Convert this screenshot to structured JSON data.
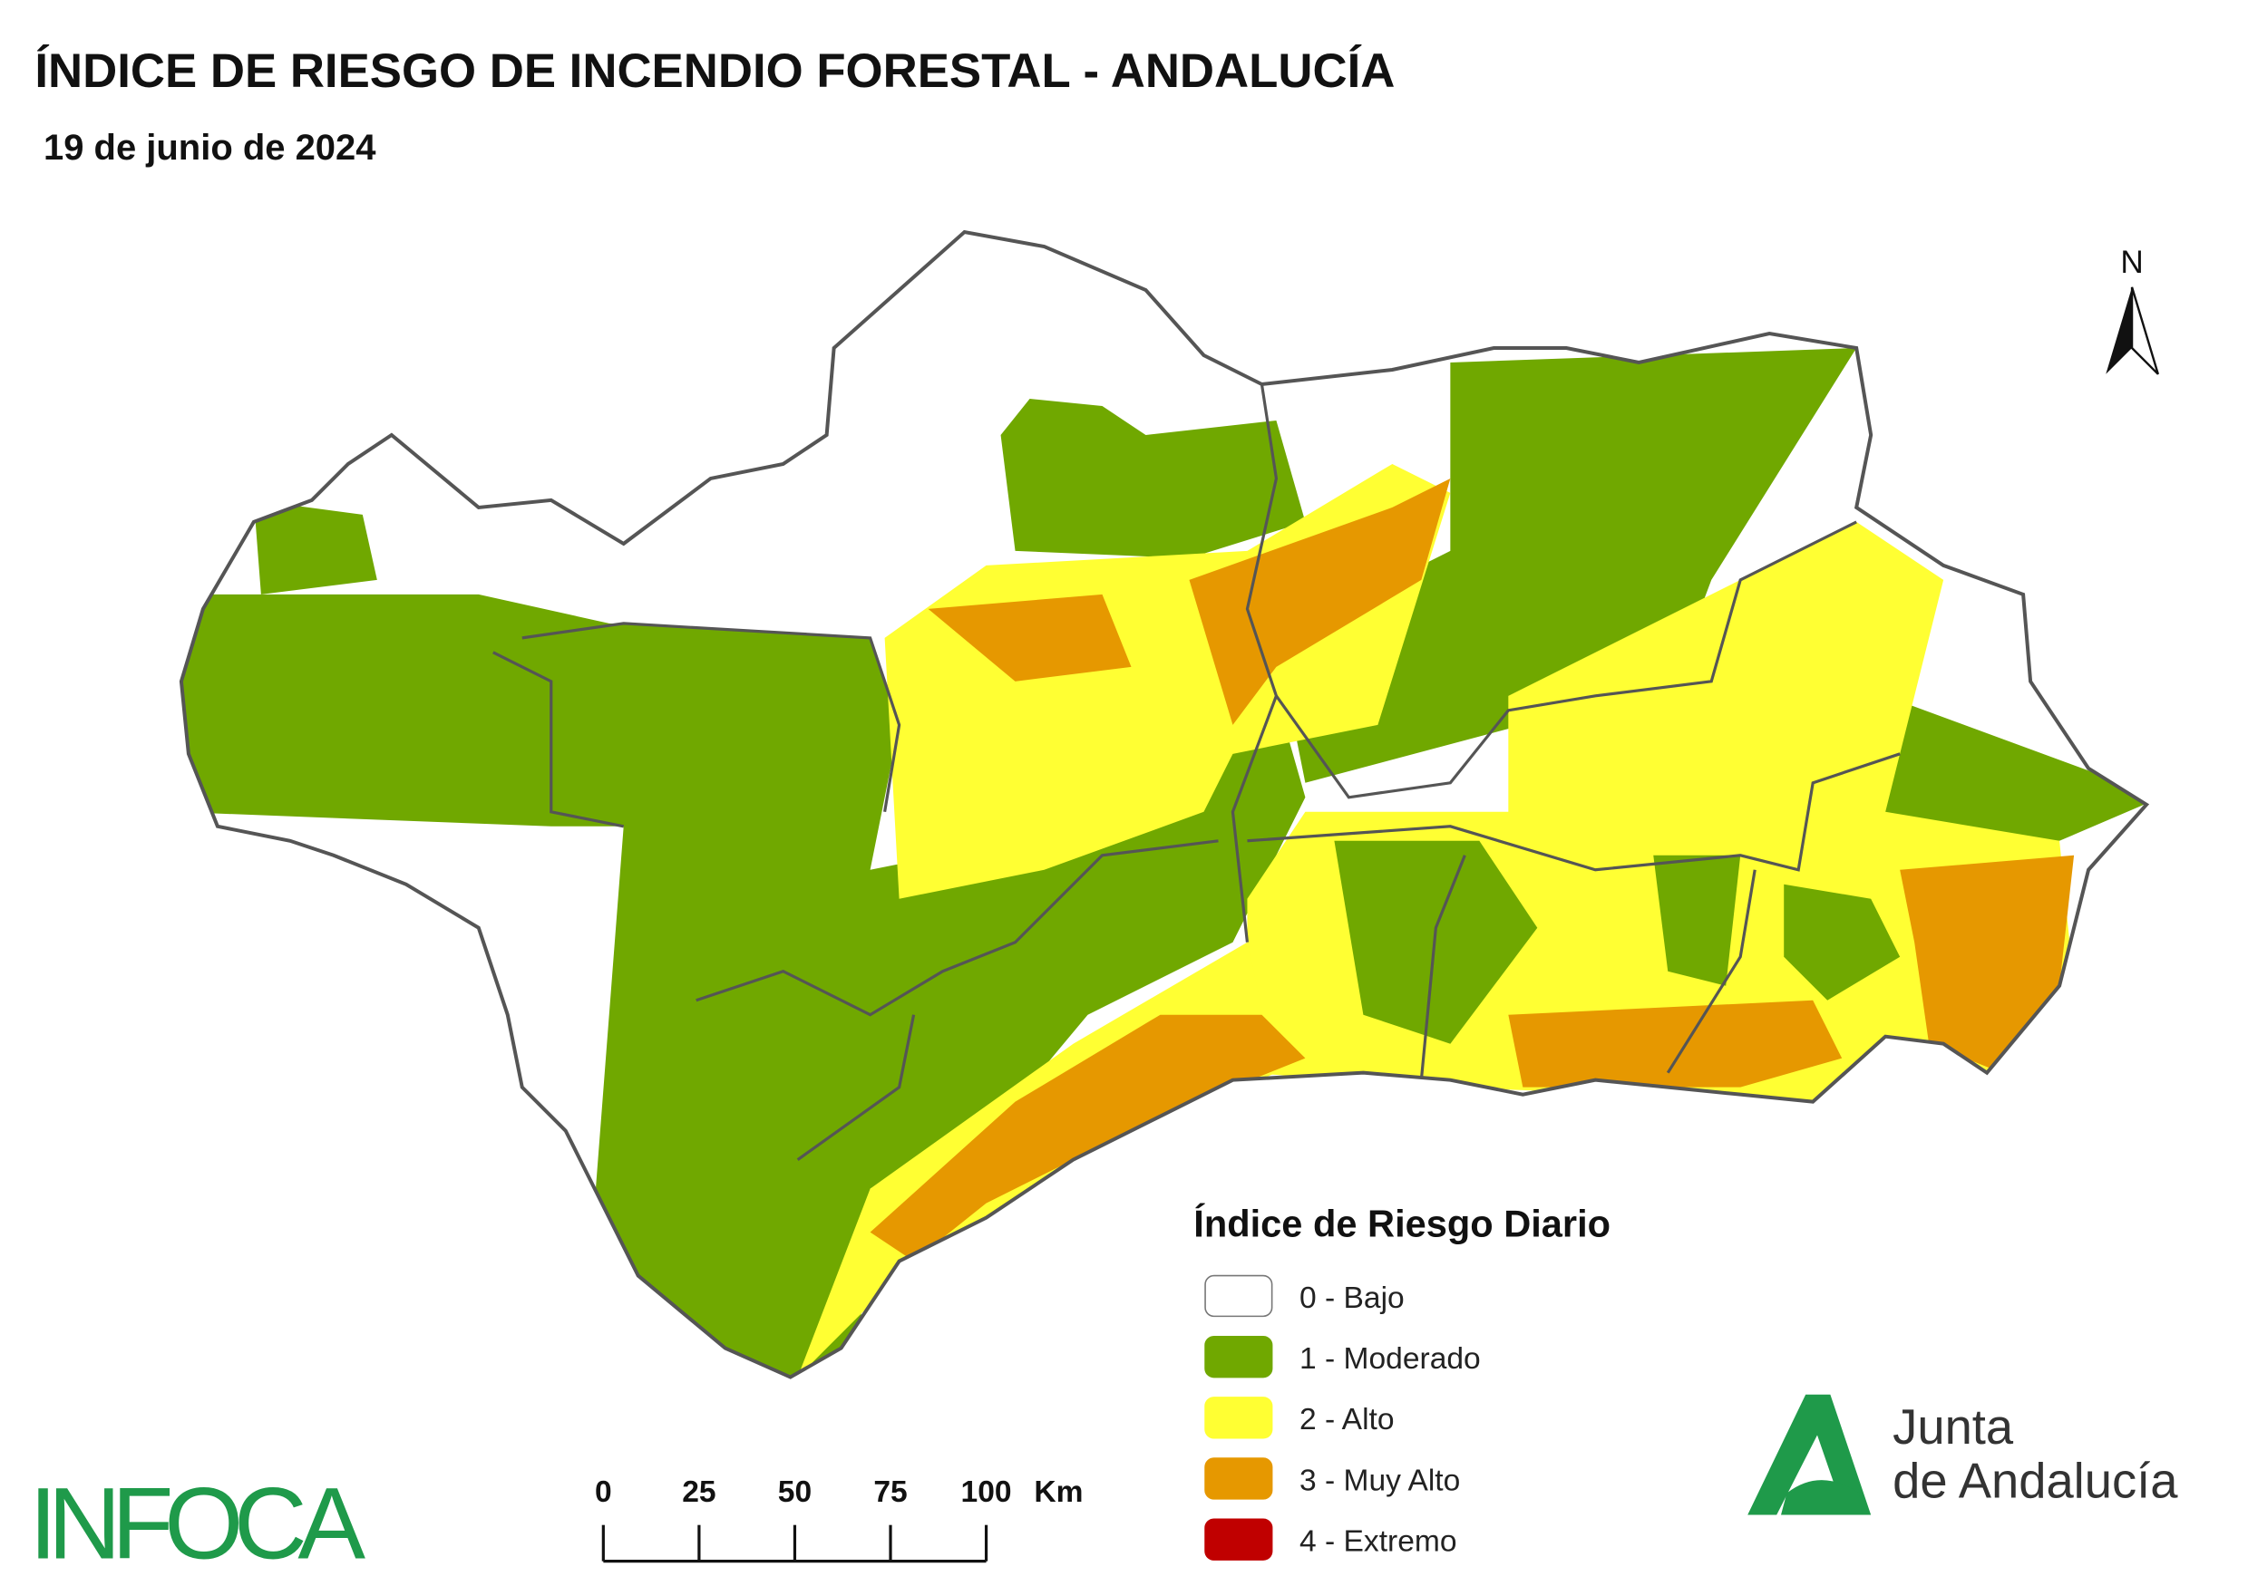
{
  "header": {
    "title": "ÍNDICE DE RIESGO DE INCENDIO FORESTAL - ANDALUCÍA",
    "subtitle": "19 de junio de 2024"
  },
  "legend": {
    "title": "Índice de Riesgo Diario",
    "items": [
      {
        "label": "0 - Bajo",
        "color": "#ffffff"
      },
      {
        "label": "1 - Moderado",
        "color": "#70a800"
      },
      {
        "label": "2 - Alto",
        "color": "#ffff33"
      },
      {
        "label": "3 - Muy Alto",
        "color": "#e69800"
      },
      {
        "label": "4 - Extremo",
        "color": "#c00000"
      }
    ]
  },
  "scale_bar": {
    "ticks": [
      0,
      25,
      50,
      75,
      100
    ],
    "unit": "Km"
  },
  "north": "N",
  "logos": {
    "infoca": "INFOCA",
    "junta_line1": "Junta",
    "junta_line2": "de Andalucía"
  }
}
